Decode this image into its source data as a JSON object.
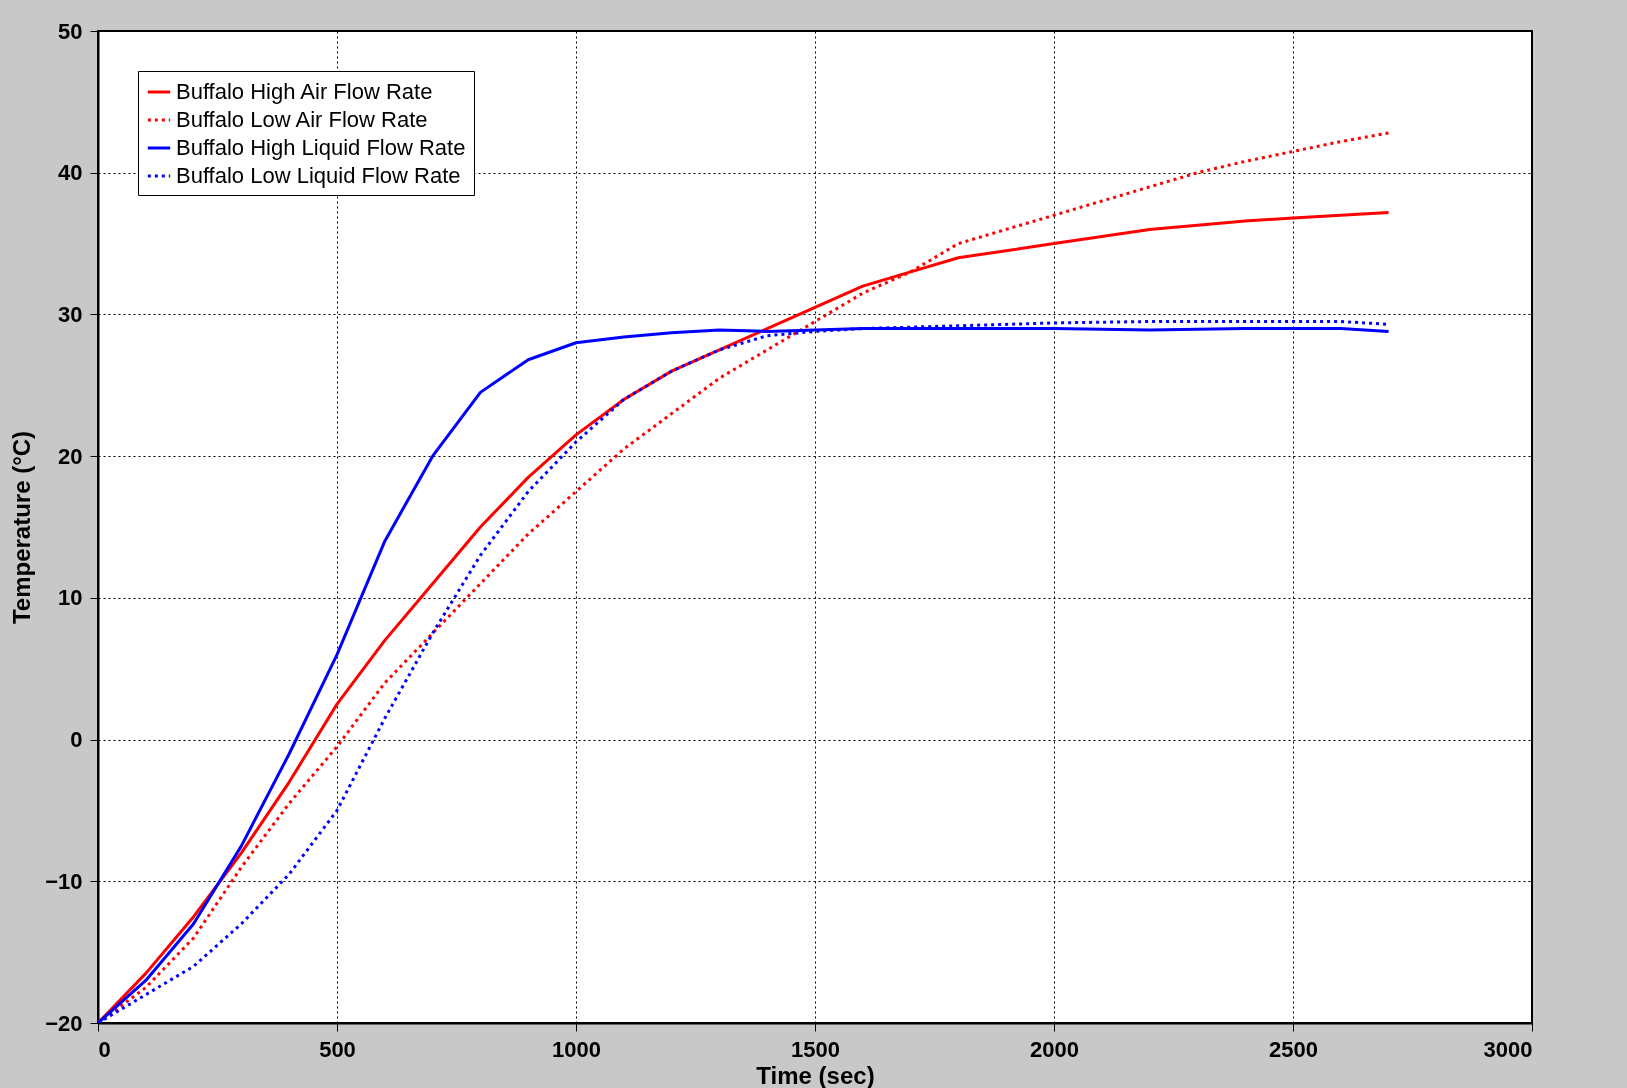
{
  "chart_data": {
    "type": "line",
    "xlabel": "Time (sec)",
    "ylabel": "Temperature (°C)",
    "xlim": [
      0,
      3000
    ],
    "ylim": [
      -20,
      50
    ],
    "xticks": [
      0,
      500,
      1000,
      1500,
      2000,
      2500,
      3000
    ],
    "yticks": [
      -20,
      -10,
      0,
      10,
      20,
      30,
      40,
      50
    ],
    "grid": true,
    "legend": "top left",
    "marker": "none",
    "series": [
      {
        "name": "Buffalo High Air Flow Rate",
        "color": "#ff0000",
        "line_style": "solid",
        "x": [
          0,
          100,
          200,
          300,
          400,
          500,
          600,
          700,
          800,
          900,
          1000,
          1100,
          1200,
          1300,
          1400,
          1500,
          1600,
          1700,
          1800,
          1900,
          2000,
          2100,
          2200,
          2300,
          2400,
          2500,
          2600,
          2700
        ],
        "values": [
          -20,
          -16.5,
          -12.5,
          -8,
          -3,
          2.5,
          7,
          11,
          15,
          18.5,
          21.5,
          24,
          26,
          27.5,
          29,
          30.5,
          32,
          33,
          34,
          34.5,
          35,
          35.5,
          36,
          36.3,
          36.6,
          36.8,
          37,
          37.2
        ]
      },
      {
        "name": "Buffalo Low Air Flow Rate",
        "color": "#ff0000",
        "line_style": "dotted",
        "x": [
          0,
          100,
          200,
          300,
          400,
          500,
          600,
          700,
          800,
          900,
          1000,
          1100,
          1200,
          1300,
          1400,
          1500,
          1600,
          1700,
          1800,
          1900,
          2000,
          2100,
          2200,
          2300,
          2400,
          2500,
          2600,
          2700
        ],
        "values": [
          -20,
          -17.5,
          -14,
          -9,
          -4.5,
          -0.5,
          4,
          7.5,
          11,
          14.5,
          17.5,
          20.5,
          23,
          25.5,
          27.5,
          29.5,
          31.5,
          33,
          35,
          36,
          37,
          38,
          39,
          40,
          40.8,
          41.5,
          42.2,
          42.8
        ]
      },
      {
        "name": "Buffalo High Liquid Flow Rate",
        "color": "#0000ff",
        "line_style": "solid",
        "x": [
          0,
          100,
          200,
          300,
          400,
          500,
          600,
          700,
          800,
          900,
          1000,
          1100,
          1200,
          1300,
          1400,
          1500,
          1600,
          1800,
          2000,
          2200,
          2400,
          2600,
          2700
        ],
        "values": [
          -20,
          -17,
          -13,
          -7.5,
          -1,
          6,
          14,
          20,
          24.5,
          26.8,
          28,
          28.4,
          28.7,
          28.9,
          28.8,
          28.9,
          29,
          29,
          29,
          28.9,
          29,
          29,
          28.8
        ]
      },
      {
        "name": "Buffalo Low Liquid Flow Rate",
        "color": "#0000ff",
        "line_style": "dotted",
        "x": [
          0,
          100,
          200,
          300,
          400,
          500,
          600,
          700,
          800,
          900,
          1000,
          1100,
          1200,
          1300,
          1400,
          1500,
          1600,
          1800,
          2000,
          2200,
          2400,
          2600,
          2700
        ],
        "values": [
          -20,
          -18,
          -16,
          -13,
          -9.5,
          -5,
          1.5,
          7.5,
          13,
          17.5,
          21,
          24,
          26,
          27.5,
          28.5,
          28.8,
          29,
          29.2,
          29.4,
          29.5,
          29.5,
          29.5,
          29.3
        ]
      }
    ]
  }
}
